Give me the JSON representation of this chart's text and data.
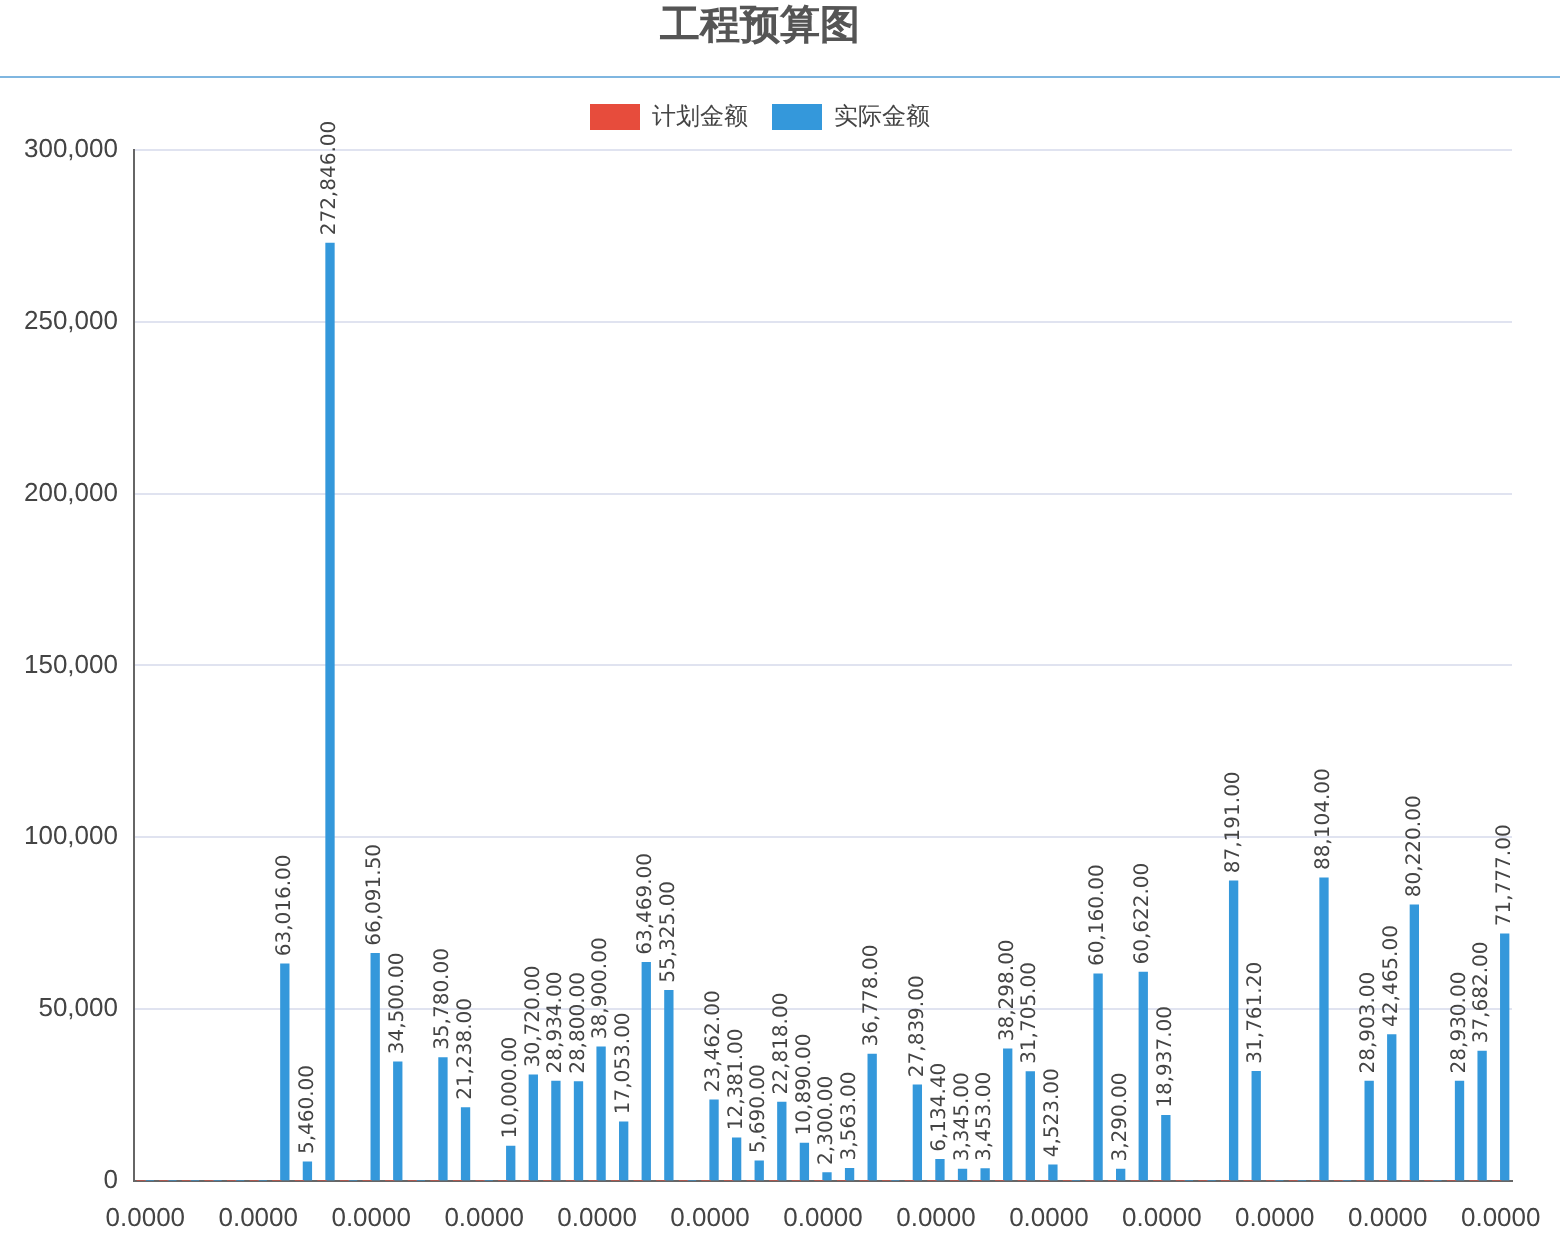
{
  "chart_data": {
    "type": "bar",
    "title": "工程预算图",
    "categories": [
      "0.0000",
      null,
      null,
      null,
      null,
      "0.0000",
      null,
      null,
      null,
      null,
      "0.0000",
      null,
      null,
      null,
      null,
      "0.0000",
      null,
      null,
      null,
      null,
      "0.0000",
      null,
      null,
      null,
      null,
      "0.0000",
      null,
      null,
      null,
      null,
      "0.0000",
      null,
      null,
      null,
      null,
      "0.0000",
      null,
      null,
      null,
      null,
      "0.0000",
      null,
      null,
      null,
      null,
      "0.0000",
      null,
      null,
      null,
      null,
      "0.0000",
      null,
      null,
      null,
      null,
      "0.0000",
      null,
      null,
      null,
      null,
      "0.0000"
    ],
    "series": [
      {
        "name": "计划金额",
        "color": "#e74c3c",
        "values": [
          0,
          0,
          0,
          0,
          0,
          0,
          0,
          0,
          0,
          0,
          0,
          0,
          0,
          0,
          0,
          0,
          0,
          0,
          0,
          0,
          0,
          0,
          0,
          0,
          0,
          0,
          0,
          0,
          0,
          0,
          0,
          0,
          0,
          0,
          0,
          0,
          0,
          0,
          0,
          0,
          0,
          0,
          0,
          0,
          0,
          0,
          0,
          0,
          0,
          0,
          0,
          0,
          0,
          0,
          0,
          0,
          0,
          0,
          0,
          0,
          0
        ]
      },
      {
        "name": "实际金额",
        "color": "#3498db",
        "values": [
          0,
          0,
          0,
          0,
          0,
          0,
          63016,
          5460,
          272846,
          0,
          66091.5,
          34500,
          0,
          35780,
          21238,
          0,
          10000,
          30720,
          28934,
          28800,
          38900,
          17053,
          63469,
          55325,
          0,
          23462,
          12381,
          5690,
          22818,
          10890,
          2300,
          3563,
          36778,
          0,
          27839,
          6134.4,
          3345,
          3453,
          38298,
          31705,
          4523,
          0,
          60160,
          3290,
          60622,
          18937,
          0,
          0,
          87191,
          31761.2,
          0,
          0,
          88104,
          0,
          28903,
          42465,
          80220,
          0,
          28930,
          37682,
          71777
        ],
        "value_labels": [
          null,
          null,
          null,
          null,
          null,
          null,
          "63,016.00",
          "5,460.00",
          "272,846.00",
          null,
          "66,091.50",
          "34,500.00",
          null,
          "35,780.00",
          "21,238.00",
          null,
          "10,000.00",
          "30,720.00",
          "28,934.00",
          "28,800.00",
          "38,900.00",
          "17,053.00",
          "63,469.00",
          "55,325.00",
          null,
          "23,462.00",
          "12,381.00",
          "5,690.00",
          "22,818.00",
          "10,890.00",
          "2,300.00",
          "3,563.00",
          "36,778.00",
          null,
          "27,839.00",
          "6,134.40",
          "3,345.00",
          "3,453.00",
          "38,298.00",
          "31,705.00",
          "4,523.00",
          null,
          "60,160.00",
          "3,290.00",
          "60,622.00",
          "18,937.00",
          null,
          null,
          "87,191.00",
          "31,761.20",
          null,
          null,
          "88,104.00",
          null,
          "28,903.00",
          "42,465.00",
          "80,220.00",
          null,
          "28,930.00",
          "37,682.00",
          "71,777.00"
        ]
      }
    ],
    "ylim": [
      0,
      300000
    ],
    "yticks": [
      0,
      {
        "value": 50000,
        "label": "50,000"
      },
      {
        "value": 100000,
        "label": "100,000"
      },
      {
        "value": 150000,
        "label": "150,000"
      },
      {
        "value": 200000,
        "label": "200,000"
      },
      {
        "value": 250000,
        "label": "250,000"
      },
      {
        "value": 300000,
        "label": "300,000"
      }
    ],
    "grid": "y",
    "legend": "top"
  }
}
